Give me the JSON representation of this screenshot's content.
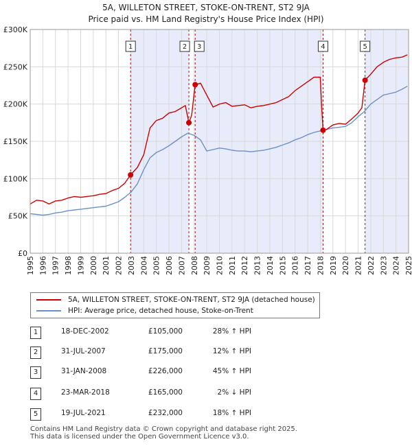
{
  "header": {
    "title_line1": "5A, WILLETON STREET, STOKE-ON-TRENT, ST2 9JA",
    "title_line2": "Price paid vs. HM Land Registry's House Price Index (HPI)"
  },
  "chart_data": {
    "type": "line",
    "title": "5A, WILLETON STREET, STOKE-ON-TRENT, ST2 9JA — Price paid vs. HM Land Registry's House Price Index (HPI)",
    "xlim": [
      1995,
      2025
    ],
    "ylim": [
      0,
      300000
    ],
    "x_ticks": [
      1995,
      1996,
      1997,
      1998,
      1999,
      2000,
      2001,
      2002,
      2003,
      2004,
      2005,
      2006,
      2007,
      2008,
      2009,
      2010,
      2011,
      2012,
      2013,
      2014,
      2015,
      2016,
      2017,
      2018,
      2019,
      2020,
      2021,
      2022,
      2023,
      2024,
      2025
    ],
    "y_ticks": [
      0,
      50000,
      100000,
      150000,
      200000,
      250000,
      300000
    ],
    "y_tick_labels": [
      "£0",
      "£50K",
      "£100K",
      "£150K",
      "£200K",
      "£250K",
      "£300K"
    ],
    "grid": true,
    "series": [
      {
        "name": "5A, WILLETON STREET, STOKE-ON-TRENT, ST2 9JA (detached house)",
        "color": "#cc0000",
        "x": [
          1995.0,
          1995.5,
          1996.0,
          1996.5,
          1997.0,
          1997.5,
          1998.0,
          1998.5,
          1999.0,
          1999.5,
          2000.0,
          2000.5,
          2001.0,
          2001.5,
          2002.0,
          2002.5,
          2002.96,
          2003.5,
          2004.0,
          2004.5,
          2005.0,
          2005.5,
          2006.0,
          2006.5,
          2007.0,
          2007.3,
          2007.58,
          2007.8,
          2008.08,
          2008.5,
          2009.0,
          2009.5,
          2010.0,
          2010.5,
          2011.0,
          2011.5,
          2012.0,
          2012.5,
          2013.0,
          2013.5,
          2014.0,
          2014.5,
          2015.0,
          2015.5,
          2016.0,
          2016.5,
          2017.0,
          2017.5,
          2018.0,
          2018.1,
          2018.22,
          2018.5,
          2019.0,
          2019.5,
          2020.0,
          2020.5,
          2021.0,
          2021.3,
          2021.55,
          2022.0,
          2022.5,
          2023.0,
          2023.5,
          2024.0,
          2024.5,
          2024.9
        ],
        "values": [
          66000,
          71000,
          70000,
          66000,
          70000,
          71000,
          74000,
          76000,
          75000,
          76000,
          77000,
          79000,
          80000,
          84000,
          87000,
          94000,
          105000,
          115000,
          132000,
          168000,
          178000,
          181000,
          188000,
          190000,
          195000,
          198000,
          175000,
          185000,
          226000,
          228000,
          212000,
          196000,
          200000,
          202000,
          197000,
          198000,
          199000,
          195000,
          197000,
          198000,
          200000,
          202000,
          206000,
          210000,
          218000,
          224000,
          230000,
          236000,
          236000,
          198000,
          165000,
          166000,
          172000,
          174000,
          173000,
          180000,
          188000,
          195000,
          232000,
          240000,
          250000,
          256000,
          260000,
          262000,
          263000,
          266000
        ]
      },
      {
        "name": "HPI: Average price, detached house, Stoke-on-Trent",
        "color": "#6a8fc7",
        "x": [
          1995.0,
          1995.5,
          1996.0,
          1996.5,
          1997.0,
          1997.5,
          1998.0,
          1998.5,
          1999.0,
          1999.5,
          2000.0,
          2000.5,
          2001.0,
          2001.5,
          2002.0,
          2002.5,
          2003.0,
          2003.5,
          2004.0,
          2004.5,
          2005.0,
          2005.5,
          2006.0,
          2006.5,
          2007.0,
          2007.5,
          2008.0,
          2008.5,
          2009.0,
          2009.5,
          2010.0,
          2010.5,
          2011.0,
          2011.5,
          2012.0,
          2012.5,
          2013.0,
          2013.5,
          2014.0,
          2014.5,
          2015.0,
          2015.5,
          2016.0,
          2016.5,
          2017.0,
          2017.5,
          2018.0,
          2018.5,
          2019.0,
          2019.5,
          2020.0,
          2020.5,
          2021.0,
          2021.5,
          2022.0,
          2022.5,
          2023.0,
          2023.5,
          2024.0,
          2024.5,
          2024.9
        ],
        "values": [
          53000,
          52000,
          51000,
          52000,
          54000,
          55000,
          57000,
          58000,
          59000,
          60000,
          61000,
          62000,
          63000,
          66000,
          69000,
          75000,
          82000,
          93000,
          112000,
          128000,
          135000,
          139000,
          144000,
          150000,
          156000,
          161000,
          158000,
          152000,
          137000,
          139000,
          141000,
          140000,
          138000,
          137000,
          137000,
          136000,
          137000,
          138000,
          140000,
          142000,
          145000,
          148000,
          152000,
          155000,
          159000,
          162000,
          164000,
          166000,
          168000,
          169000,
          170000,
          175000,
          183000,
          190000,
          200000,
          206000,
          212000,
          214000,
          216000,
          220000,
          224000
        ]
      }
    ],
    "sales": [
      {
        "label": "1",
        "x": 2002.96,
        "value": 105000
      },
      {
        "label": "2",
        "x": 2007.58,
        "value": 175000
      },
      {
        "label": "3",
        "x": 2008.08,
        "value": 226000
      },
      {
        "label": "4",
        "x": 2018.22,
        "value": 165000
      },
      {
        "label": "5",
        "x": 2021.55,
        "value": 232000
      }
    ],
    "shaded_ranges": [
      [
        2002.96,
        2007.58
      ],
      [
        2008.08,
        2018.22
      ],
      [
        2021.55,
        2024.95
      ]
    ],
    "sale_color": "#cc0000",
    "shade_color": "#e8ecfa"
  },
  "legend": {
    "property_label": "5A, WILLETON STREET, STOKE-ON-TRENT, ST2 9JA (detached house)",
    "hpi_label": "HPI: Average price, detached house, Stoke-on-Trent"
  },
  "sales_table": [
    {
      "num": "1",
      "date": "18-DEC-2002",
      "price": "£105,000",
      "pct": "28% ↑ HPI"
    },
    {
      "num": "2",
      "date": "31-JUL-2007",
      "price": "£175,000",
      "pct": "12% ↑ HPI"
    },
    {
      "num": "3",
      "date": "31-JAN-2008",
      "price": "£226,000",
      "pct": "45% ↑ HPI"
    },
    {
      "num": "4",
      "date": "23-MAR-2018",
      "price": "£165,000",
      "pct": "2% ↓ HPI"
    },
    {
      "num": "5",
      "date": "19-JUL-2021",
      "price": "£232,000",
      "pct": "18% ↑ HPI"
    }
  ],
  "footer": {
    "line1": "Contains HM Land Registry data © Crown copyright and database right 2025.",
    "line2": "This data is licensed under the Open Government Licence v3.0."
  }
}
